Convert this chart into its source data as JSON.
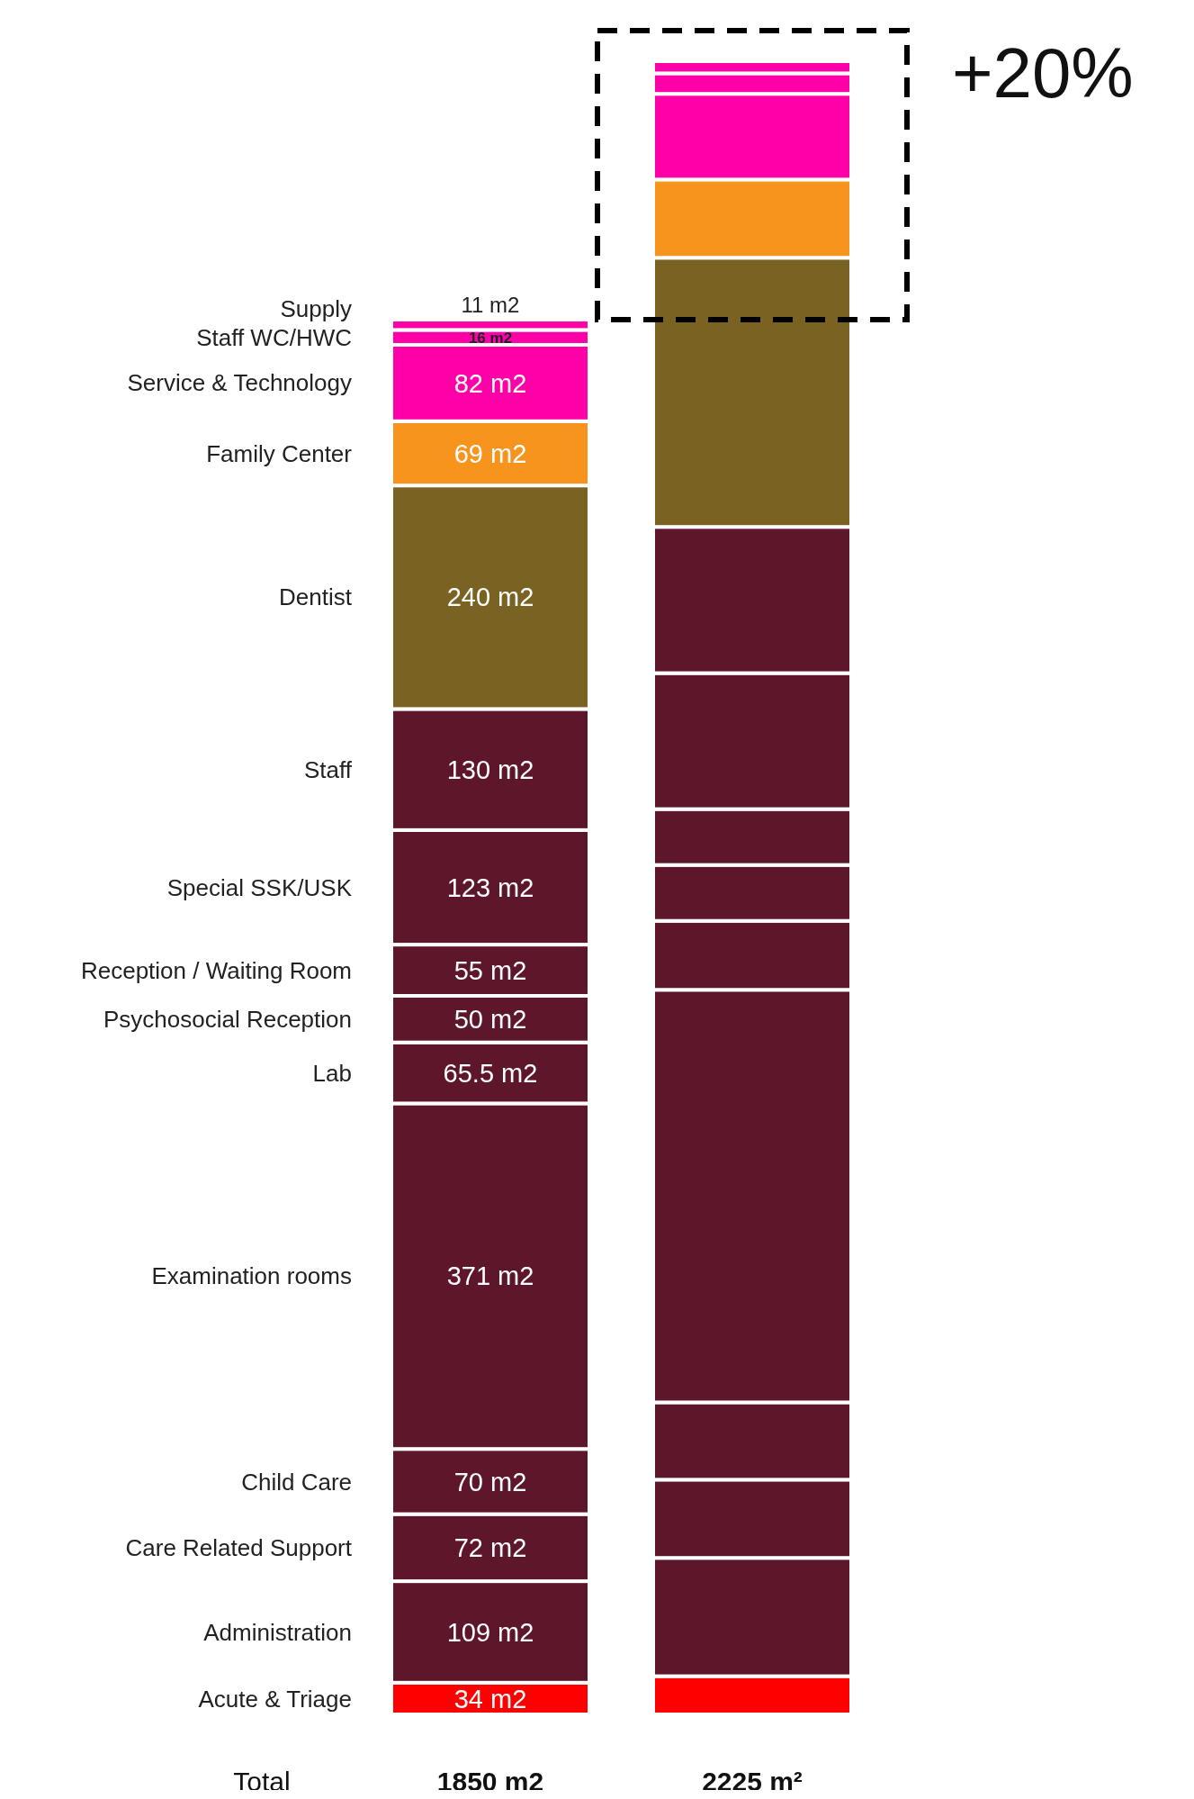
{
  "chart_data": {
    "type": "bar",
    "stacked": true,
    "xlabel": "Total",
    "categories": [
      "1850 m2",
      "2225 m²"
    ],
    "series": [
      {
        "name": "Acute & Triage",
        "color": "#ff0000",
        "values": [
          34,
          41
        ],
        "value_labels": [
          "34 m2",
          null
        ]
      },
      {
        "name": "Administration",
        "color": "#5e162b",
        "values": [
          109,
          127
        ],
        "value_labels": [
          "109 m2",
          null
        ]
      },
      {
        "name": "Care Related Support",
        "color": "#5e162b",
        "values": [
          72,
          84
        ],
        "value_labels": [
          "72 m2",
          null
        ]
      },
      {
        "name": "Child Care",
        "color": "#5e162b",
        "values": [
          70,
          83
        ],
        "value_labels": [
          "70 m2",
          null
        ]
      },
      {
        "name": "Examination rooms",
        "color": "#5e162b",
        "values": [
          371,
          443
        ],
        "value_labels": [
          "371 m2",
          null
        ]
      },
      {
        "name": "Lab",
        "color": "#5e162b",
        "values": [
          65.5,
          74
        ],
        "value_labels": [
          "65.5 m2",
          null
        ]
      },
      {
        "name": "Psychosocial Reception",
        "color": "#5e162b",
        "values": [
          50,
          60
        ],
        "value_labels": [
          "50 m2",
          null
        ]
      },
      {
        "name": "Reception / Waiting Room",
        "color": "#5e162b",
        "values": [
          55,
          60
        ],
        "value_labels": [
          "55 m2",
          null
        ]
      },
      {
        "name": "Special SSK/USK",
        "color": "#5e162b",
        "values": [
          123,
          146
        ],
        "value_labels": [
          "123 m2",
          null
        ]
      },
      {
        "name": "Staff",
        "color": "#5e162b",
        "values": [
          130,
          157
        ],
        "value_labels": [
          "130 m2",
          null
        ]
      },
      {
        "name": "Dentist",
        "color": "#7a6223",
        "values": [
          240,
          289
        ],
        "value_labels": [
          "240 m2",
          null
        ]
      },
      {
        "name": "Family Center",
        "color": "#f7941d",
        "values": [
          69,
          84
        ],
        "value_labels": [
          "69 m2",
          null
        ]
      },
      {
        "name": "Service & Technology",
        "color": "#ff00a8",
        "values": [
          82,
          92
        ],
        "value_labels": [
          "82 m2",
          null
        ]
      },
      {
        "name": "Staff WC/HWC",
        "color": "#ff00a8",
        "values": [
          16,
          22
        ],
        "value_labels": [
          "16 m2",
          null
        ]
      },
      {
        "name": "Supply",
        "color": "#ff00a8",
        "values": [
          11,
          13
        ],
        "value_labels": [
          "11 m2",
          null
        ]
      }
    ],
    "annotations": [
      "+20%"
    ]
  }
}
